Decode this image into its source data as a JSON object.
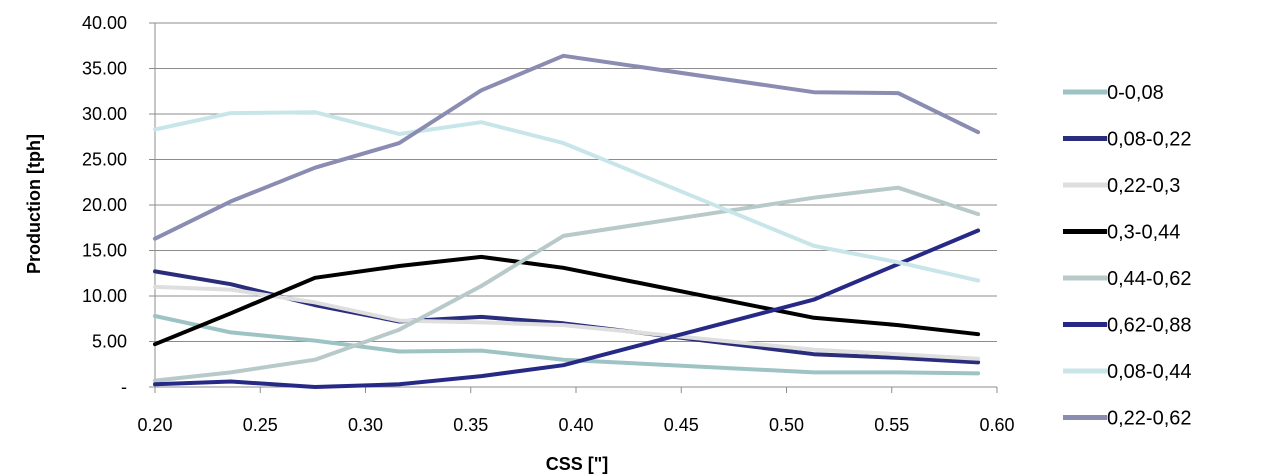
{
  "chart_data": {
    "type": "line",
    "xlabel": "CSS [\"]",
    "ylabel": "Production [tph]",
    "xlim": [
      0.2,
      0.6
    ],
    "ylim": [
      0,
      40
    ],
    "x_ticks": [
      "0.20",
      "0.25",
      "0.30",
      "0.35",
      "0.40",
      "0.45",
      "0.50",
      "0.55",
      "0.60"
    ],
    "y_ticks": [
      "-",
      "5.00",
      "10.00",
      "15.00",
      "20.00",
      "25.00",
      "30.00",
      "35.00",
      "40.00"
    ],
    "grid": "horizontal",
    "legend_position": "right",
    "x": [
      0.2,
      0.236,
      0.276,
      0.316,
      0.355,
      0.394,
      0.513,
      0.553,
      0.591
    ],
    "series": [
      {
        "name": "0-0,08",
        "color": "#9dc3c4",
        "values": [
          7.8,
          6.0,
          5.1,
          3.9,
          4.0,
          3.0,
          1.6,
          1.6,
          1.5
        ]
      },
      {
        "name": "0,08-0,22",
        "color": "#2a2d7c",
        "values": [
          12.7,
          11.3,
          9.0,
          7.2,
          7.7,
          7.0,
          3.6,
          3.2,
          2.7
        ]
      },
      {
        "name": "0,22-0,3",
        "color": "#dedede",
        "values": [
          11.0,
          10.7,
          9.3,
          7.3,
          7.1,
          6.8,
          4.1,
          3.6,
          3.1
        ]
      },
      {
        "name": "0,3-0,44",
        "color": "#000000",
        "values": [
          4.7,
          8.1,
          12.0,
          13.3,
          14.3,
          13.1,
          7.6,
          6.8,
          5.8
        ]
      },
      {
        "name": "0,44-0,62",
        "color": "#b8c9c9",
        "values": [
          0.7,
          1.6,
          3.0,
          6.3,
          11.1,
          16.6,
          20.8,
          21.9,
          19.0
        ]
      },
      {
        "name": "0,62-0,88",
        "color": "#262a86",
        "values": [
          0.3,
          0.6,
          0.0,
          0.3,
          1.2,
          2.4,
          9.6,
          13.5,
          17.2
        ]
      },
      {
        "name": "0,08-0,44",
        "color": "#c8e6ea",
        "values": [
          28.3,
          30.1,
          30.2,
          27.8,
          29.1,
          26.8,
          15.5,
          13.7,
          11.7
        ]
      },
      {
        "name": "0,22-0,62",
        "color": "#8a8cb2",
        "values": [
          16.3,
          20.4,
          24.1,
          26.8,
          32.6,
          36.4,
          32.4,
          32.3,
          28.0
        ]
      }
    ]
  }
}
